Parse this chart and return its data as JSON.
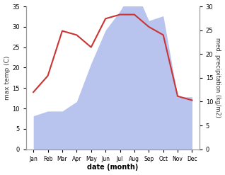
{
  "months": [
    "Jan",
    "Feb",
    "Mar",
    "Apr",
    "May",
    "Jun",
    "Jul",
    "Aug",
    "Sep",
    "Oct",
    "Nov",
    "Dec"
  ],
  "temperature": [
    14,
    18,
    29,
    28,
    25,
    32,
    33,
    33,
    30,
    28,
    13,
    12
  ],
  "precipitation": [
    7,
    8,
    8,
    10,
    18,
    25,
    29,
    34,
    27,
    28,
    11,
    11
  ],
  "temp_color": "#cc3333",
  "precip_color": "#b8c4ee",
  "left_ylabel": "max temp (C)",
  "right_ylabel": "med. precipitation (kg/m2)",
  "xlabel": "date (month)",
  "ylim_left": [
    0,
    35
  ],
  "ylim_right": [
    0,
    30
  ],
  "yticks_left": [
    0,
    5,
    10,
    15,
    20,
    25,
    30,
    35
  ],
  "yticks_right": [
    0,
    5,
    10,
    15,
    20,
    25,
    30
  ],
  "precip_scale": 0.857142857,
  "bg_color": "#ffffff"
}
